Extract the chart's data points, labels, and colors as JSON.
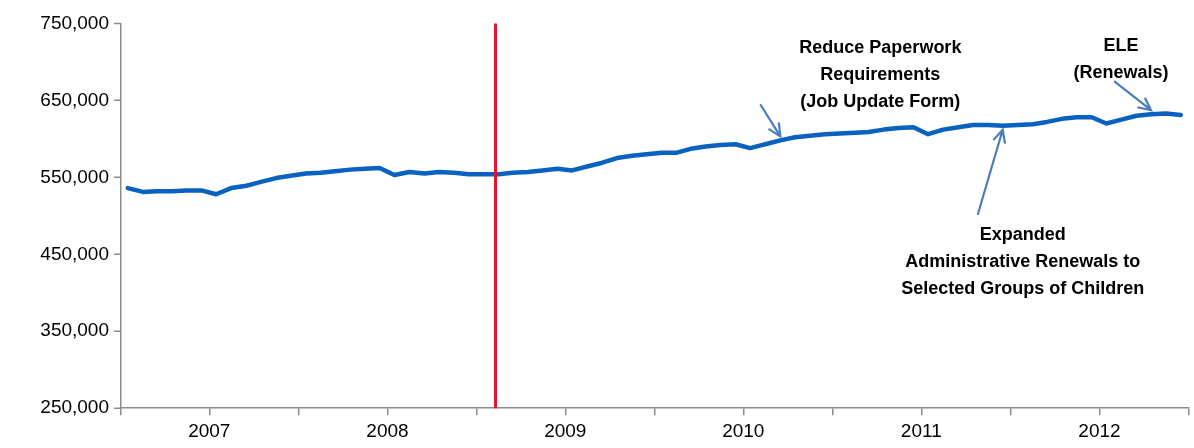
{
  "chart_data": {
    "type": "line",
    "x": [
      "2007-01-15",
      "2007-02-15",
      "2007-03-15",
      "2007-04-15",
      "2007-05-15",
      "2007-06-15",
      "2007-07-15",
      "2007-08-15",
      "2007-09-15",
      "2007-10-15",
      "2007-11-15",
      "2007-12-15",
      "2008-01-15",
      "2008-02-15",
      "2008-03-15",
      "2008-04-15",
      "2008-05-15",
      "2008-06-15",
      "2008-07-15",
      "2008-08-15",
      "2008-09-15",
      "2008-10-15",
      "2008-11-15",
      "2008-12-15",
      "2009-01-15",
      "2009-02-15",
      "2009-03-15",
      "2009-04-15",
      "2009-05-15",
      "2009-06-15",
      "2009-07-15",
      "2009-08-15",
      "2009-09-15",
      "2009-10-15",
      "2009-11-15",
      "2009-12-15",
      "2010-01-15",
      "2010-02-15",
      "2010-03-15",
      "2010-04-15",
      "2010-05-15",
      "2010-06-15",
      "2010-07-15",
      "2010-08-15",
      "2010-09-15",
      "2010-10-15",
      "2010-11-15",
      "2010-12-15",
      "2011-01-15",
      "2011-02-15",
      "2011-03-15",
      "2011-04-15",
      "2011-05-15",
      "2011-06-15",
      "2011-07-15",
      "2011-08-15",
      "2011-09-15",
      "2011-10-15",
      "2011-11-15",
      "2011-12-15",
      "2012-01-15",
      "2012-02-15",
      "2012-03-15",
      "2012-04-15",
      "2012-05-15",
      "2012-06-15",
      "2012-07-15",
      "2012-08-15",
      "2012-09-15",
      "2012-10-15",
      "2012-11-15",
      "2012-12-15"
    ],
    "series": [
      {
        "color": "#0a62c0",
        "values": [
          536000,
          531000,
          532000,
          532000,
          533000,
          533000,
          528000,
          536000,
          539000,
          544000,
          549000,
          552000,
          555000,
          556000,
          558000,
          560000,
          561000,
          562000,
          553000,
          557000,
          555000,
          557000,
          556000,
          554000,
          554000,
          554000,
          556000,
          557000,
          559000,
          561000,
          559000,
          564000,
          569000,
          575000,
          578000,
          580000,
          582000,
          582000,
          587000,
          590000,
          592000,
          593000,
          588000,
          593000,
          598000,
          602000,
          604000,
          606000,
          607000,
          608000,
          609000,
          612000,
          614000,
          615000,
          606000,
          612000,
          615000,
          618000,
          618000,
          617000,
          618000,
          619000,
          622000,
          626000,
          628000,
          628000,
          620000,
          625000,
          630000,
          632000,
          633000,
          631000
        ]
      }
    ],
    "xlim": [
      "2007-01",
      "2013-01"
    ],
    "xticks": [
      {
        "value": "2007-01",
        "label": null
      },
      {
        "value": "2007-07",
        "label": "2007"
      },
      {
        "value": "2008-01",
        "label": null
      },
      {
        "value": "2008-07",
        "label": "2008"
      },
      {
        "value": "2009-01",
        "label": null
      },
      {
        "value": "2009-07",
        "label": "2009"
      },
      {
        "value": "2010-01",
        "label": null
      },
      {
        "value": "2010-07",
        "label": "2010"
      },
      {
        "value": "2011-01",
        "label": null
      },
      {
        "value": "2011-07",
        "label": "2011"
      },
      {
        "value": "2012-01",
        "label": null
      },
      {
        "value": "2012-07",
        "label": "2012"
      },
      {
        "value": "2013-01",
        "label": null
      }
    ],
    "ylim": [
      250000,
      750000
    ],
    "yticks": [
      {
        "value": 250000,
        "label": "250,000"
      },
      {
        "value": 350000,
        "label": "350,000"
      },
      {
        "value": 450000,
        "label": "450,000"
      },
      {
        "value": 550000,
        "label": "550,000"
      },
      {
        "value": 650000,
        "label": "650,000"
      },
      {
        "value": 750000,
        "label": "750,000"
      }
    ],
    "ref_lines": [
      {
        "axis": "x",
        "value": "2009-02-08",
        "color": "#e8112d"
      }
    ],
    "annotations": [
      {
        "text": "Reduce Paperwork\nRequirements\n(Job Update Form)",
        "x": "2010-09-15",
        "y": 598000
      },
      {
        "text": "Expanded\nAdministrative Renewals to\nSelected Groups of Children",
        "x": "2011-12-15",
        "y": 617000
      },
      {
        "text": "ELE\n(Renewals)",
        "x": "2012-10-15",
        "y": 632000
      }
    ],
    "grid": false,
    "legend": false,
    "marker": "none",
    "line_style": "solid"
  }
}
